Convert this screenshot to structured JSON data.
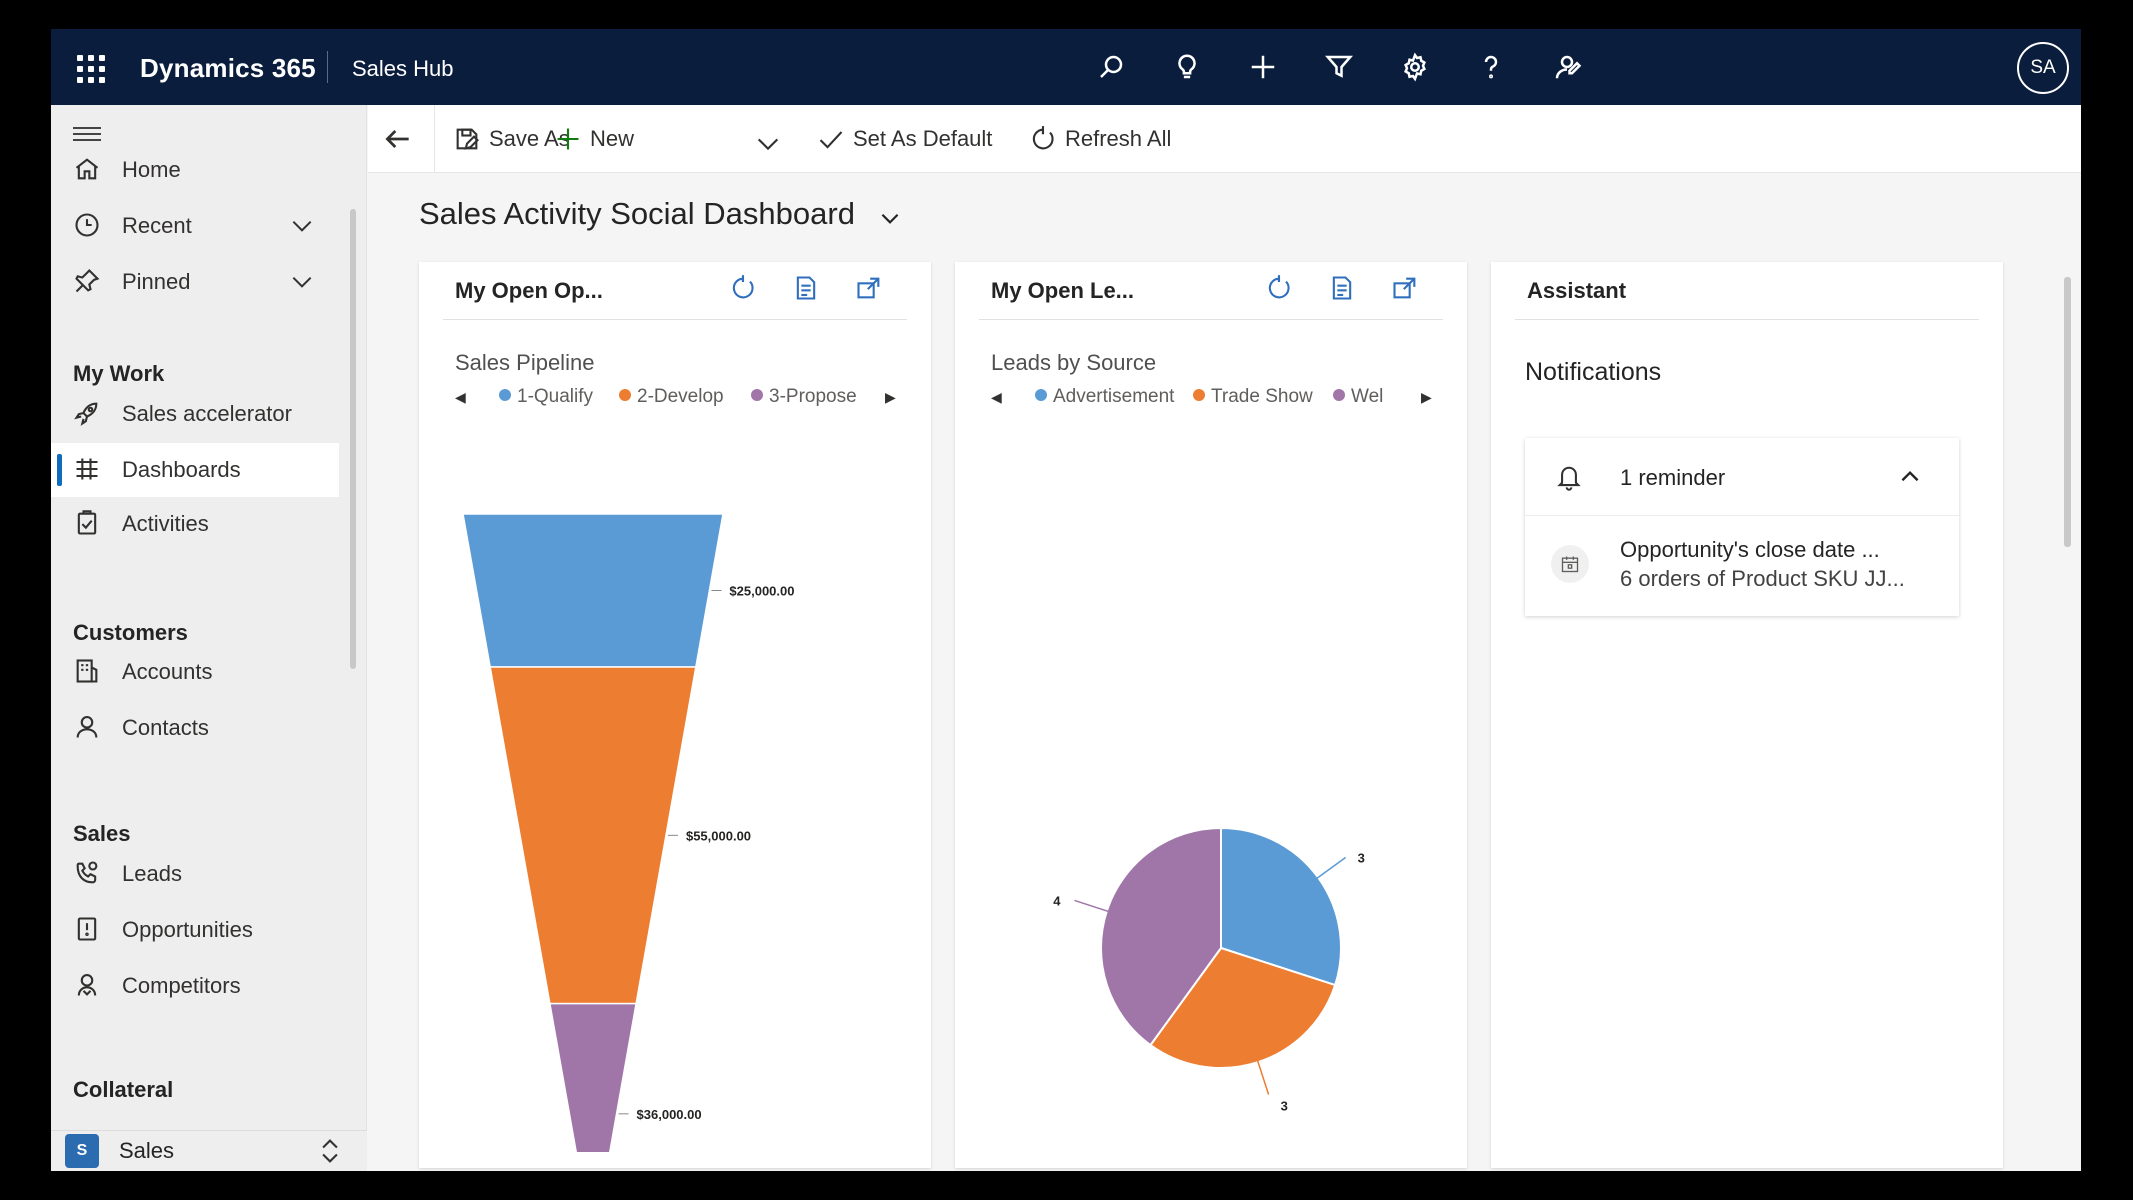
{
  "topbar": {
    "brand": "Dynamics 365",
    "app_name": "Sales Hub",
    "avatar_initials": "SA",
    "icons": [
      "search-icon",
      "lightbulb-icon",
      "plus-icon",
      "filter-icon",
      "gear-icon",
      "help-icon",
      "feedback-icon"
    ]
  },
  "sidebar": {
    "items": {
      "home": "Home",
      "recent": "Recent",
      "pinned": "Pinned",
      "sales_accelerator": "Sales accelerator",
      "dashboards": "Dashboards",
      "activities": "Activities",
      "accounts": "Accounts",
      "contacts": "Contacts",
      "leads": "Leads",
      "opportunities": "Opportunities",
      "competitors": "Competitors"
    },
    "groups": {
      "my_work": "My Work",
      "customers": "Customers",
      "sales": "Sales",
      "collateral": "Collateral"
    },
    "area": {
      "badge": "S",
      "name": "Sales"
    }
  },
  "commands": {
    "save_as": "Save As",
    "new": "New",
    "set_as_default": "Set As Default",
    "refresh_all": "Refresh All"
  },
  "page": {
    "title": "Sales Activity Social Dashboard"
  },
  "cards": {
    "opportunities": {
      "title": "My Open Op..."
    },
    "leads": {
      "title": "My Open Le..."
    },
    "assistant": {
      "title": "Assistant",
      "notifications_heading": "Notifications",
      "reminder_label": "1 reminder",
      "notification_line1": "Opportunity's close date ...",
      "notification_line2": "6 orders of Product SKU JJ..."
    }
  },
  "colors": {
    "blue": "#5b9bd5",
    "orange": "#ed7d31",
    "purple": "#a076a8",
    "topbar": "#0b1d3d",
    "accent": "#0f6cbd"
  },
  "chart_data": [
    {
      "type": "funnel",
      "title": "Sales Pipeline",
      "categories": [
        "1-Qualify",
        "2-Develop",
        "3-Propose"
      ],
      "values": [
        25000,
        55000,
        36000
      ],
      "data_labels": [
        "$25,000.00",
        "$55,000.00",
        "$36,000.00"
      ],
      "legend_position": "top"
    },
    {
      "type": "pie",
      "title": "Leads by Source",
      "categories": [
        "Advertisement",
        "Trade Show",
        "Wel"
      ],
      "values": [
        3,
        3,
        4
      ],
      "data_labels": [
        "3",
        "3",
        "4"
      ],
      "legend_position": "top"
    }
  ]
}
